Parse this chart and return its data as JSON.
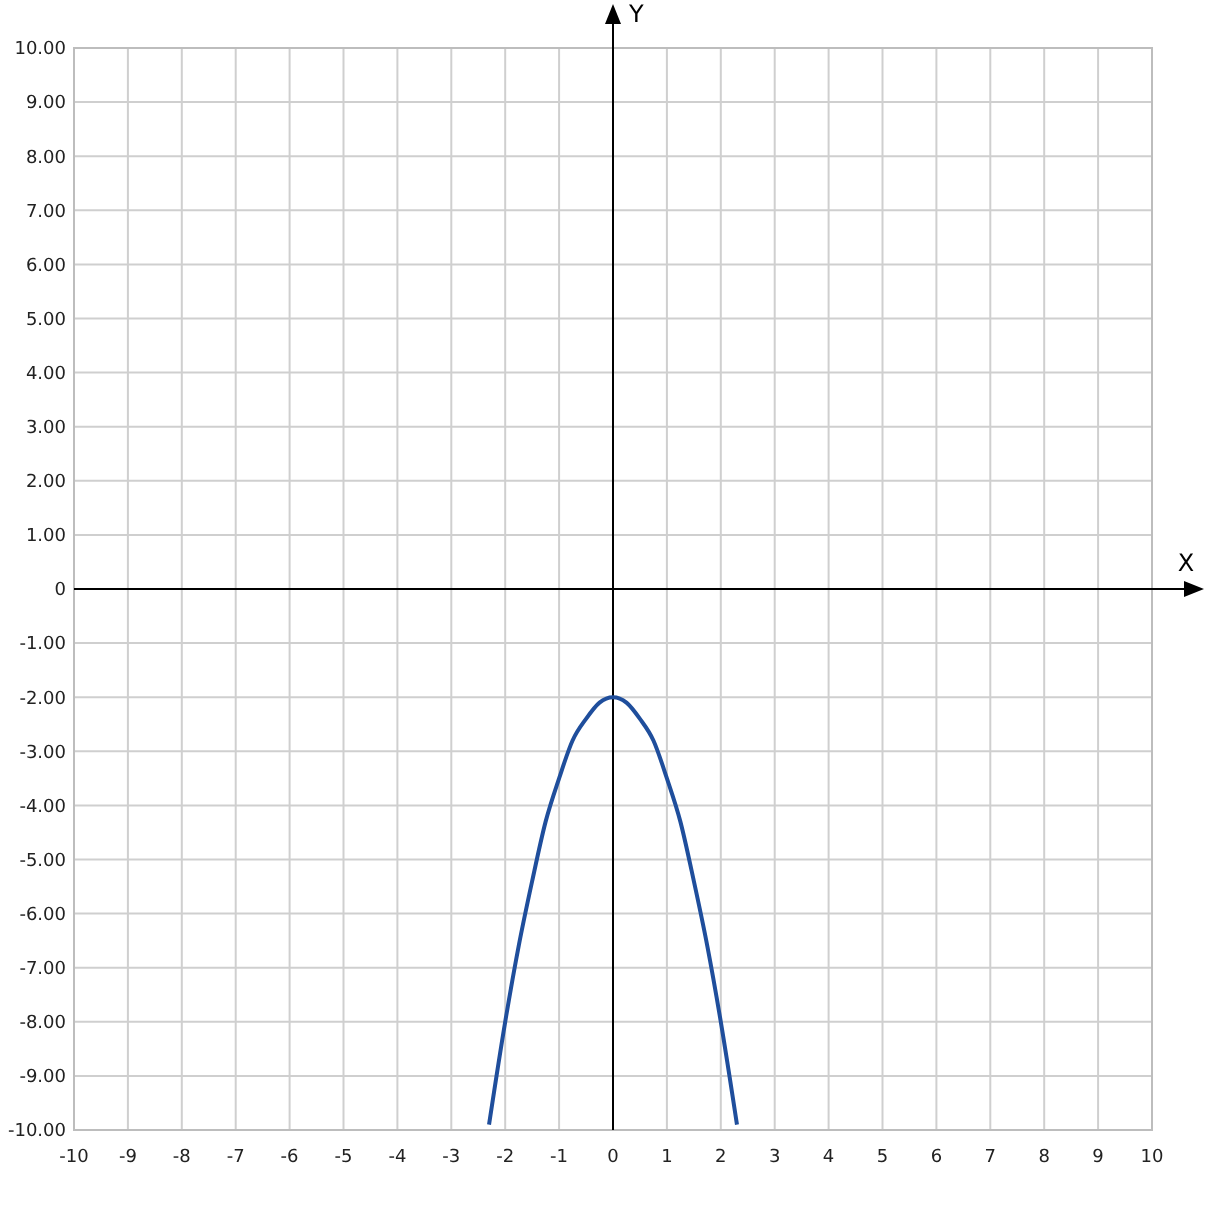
{
  "chart_data": {
    "type": "line",
    "xlabel": "X",
    "ylabel": "Y",
    "xlim": [
      -10,
      10
    ],
    "ylim": [
      -10,
      10
    ],
    "xticks": [
      -10,
      -9,
      -8,
      -7,
      -6,
      -5,
      -4,
      -3,
      -2,
      -1,
      0,
      1,
      2,
      3,
      4,
      5,
      6,
      7,
      8,
      9,
      10
    ],
    "yticks": [
      {
        "value": -10,
        "label": "-10.00"
      },
      {
        "value": -9,
        "label": "-9.00"
      },
      {
        "value": -8,
        "label": "-8.00"
      },
      {
        "value": -7,
        "label": "-7.00"
      },
      {
        "value": -6,
        "label": "-6.00"
      },
      {
        "value": -5,
        "label": "-5.00"
      },
      {
        "value": -4,
        "label": "-4.00"
      },
      {
        "value": -3,
        "label": "-3.00"
      },
      {
        "value": -2,
        "label": "-2.00"
      },
      {
        "value": -1,
        "label": "-1.00"
      },
      {
        "value": 0,
        "label": "0"
      },
      {
        "value": 1,
        "label": "1.00"
      },
      {
        "value": 2,
        "label": "2.00"
      },
      {
        "value": 3,
        "label": "3.00"
      },
      {
        "value": 4,
        "label": "4.00"
      },
      {
        "value": 5,
        "label": "5.00"
      },
      {
        "value": 6,
        "label": "6.00"
      },
      {
        "value": 7,
        "label": "7.00"
      },
      {
        "value": 8,
        "label": "8.00"
      },
      {
        "value": 9,
        "label": "9.00"
      },
      {
        "value": 10,
        "label": "10.00"
      }
    ],
    "grid": true,
    "marker": "none",
    "line_style": "solid",
    "series": [
      {
        "color": "#1f4e9c",
        "x": [
          -2.3,
          -2,
          -1.75,
          -1.5,
          -1.25,
          -1,
          -0.75,
          -0.5,
          -0.25,
          0,
          0.25,
          0.5,
          0.75,
          1,
          1.25,
          1.5,
          1.75,
          2,
          2.3
        ],
        "values": [
          -9.9,
          -8,
          -6.6,
          -5.4,
          -4.3,
          -3.5,
          -2.8,
          -2.4,
          -2.1,
          -2,
          -2.1,
          -2.4,
          -2.8,
          -3.5,
          -4.3,
          -5.4,
          -6.6,
          -8,
          -9.9
        ]
      }
    ]
  }
}
